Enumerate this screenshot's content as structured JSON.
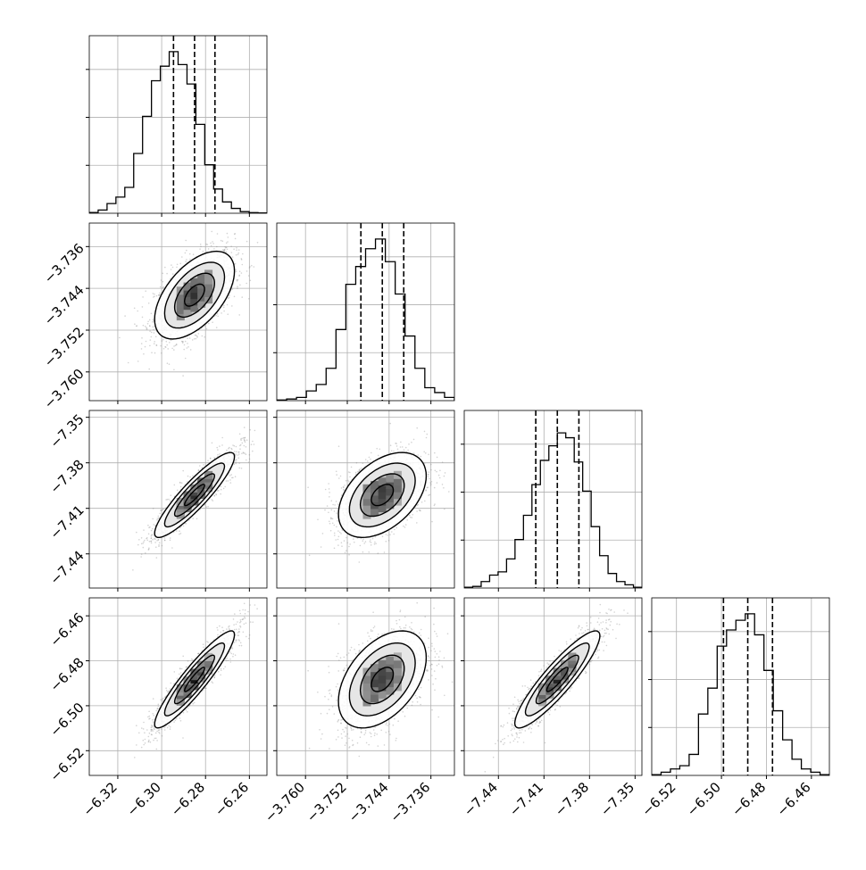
{
  "chart_data": {
    "type": "corner",
    "description_of_panels": "lower-triangle 2D histograms with contours and scatter; diagonal 1D histograms with 16/50/84 percent quantile dashed lines",
    "parameters": [
      {
        "ticks": [
          "−6.32",
          "−6.30",
          "−6.28",
          "−6.26"
        ],
        "tick_values": [
          -6.32,
          -6.3,
          -6.28,
          -6.26
        ],
        "range": [
          -6.333,
          -6.252
        ],
        "quantiles": [
          -6.2946,
          -6.285,
          -6.2757
        ],
        "hist": [
          0.005,
          0.02,
          0.06,
          0.1,
          0.16,
          0.37,
          0.6,
          0.82,
          0.91,
          1.0,
          0.92,
          0.8,
          0.55,
          0.3,
          0.15,
          0.07,
          0.03,
          0.01,
          0.004,
          0.002
        ]
      },
      {
        "ticks": [
          "−3.760",
          "−3.752",
          "−3.744",
          "−3.736"
        ],
        "tick_values": [
          -3.76,
          -3.752,
          -3.744,
          -3.736
        ],
        "range": [
          -3.7655,
          -3.7315
        ],
        "quantiles": [
          -3.7494,
          -3.7453,
          -3.7412
        ],
        "hist": [
          0.004,
          0.01,
          0.02,
          0.06,
          0.1,
          0.2,
          0.44,
          0.72,
          0.83,
          0.94,
          1.0,
          0.86,
          0.66,
          0.4,
          0.2,
          0.08,
          0.05,
          0.02
        ]
      },
      {
        "ticks": [
          "−7.44",
          "−7.41",
          "−7.38",
          "−7.35"
        ],
        "tick_values": [
          -7.44,
          -7.41,
          -7.38,
          -7.35
        ],
        "range": [
          -7.4625,
          -7.3455
        ],
        "quantiles": [
          -7.4154,
          -7.4012,
          -7.387
        ],
        "hist": [
          0.005,
          0.01,
          0.04,
          0.08,
          0.1,
          0.18,
          0.3,
          0.45,
          0.64,
          0.79,
          0.88,
          0.96,
          0.93,
          0.78,
          0.6,
          0.38,
          0.2,
          0.09,
          0.04,
          0.02,
          0.005
        ]
      },
      {
        "ticks": [
          "−6.52",
          "−6.50",
          "−6.48",
          "−6.46"
        ],
        "tick_values": [
          -6.52,
          -6.5,
          -6.48,
          -6.46
        ],
        "range": [
          -6.531,
          -6.452
        ],
        "quantiles": [
          -6.4991,
          -6.4883,
          -6.4773
        ],
        "hist": [
          0.005,
          0.02,
          0.04,
          0.06,
          0.13,
          0.38,
          0.54,
          0.8,
          0.9,
          0.96,
          1.0,
          0.87,
          0.65,
          0.4,
          0.22,
          0.1,
          0.04,
          0.02,
          0.005
        ]
      }
    ],
    "pairs": [
      {
        "x": 0,
        "y": 1,
        "center": [
          -6.285,
          -3.7453
        ],
        "sd": [
          0.0091,
          0.0042
        ],
        "corr": 0.55
      },
      {
        "x": 0,
        "y": 2,
        "center": [
          -6.285,
          -7.4012
        ],
        "sd": [
          0.0091,
          0.014
        ],
        "corr": 0.9
      },
      {
        "x": 1,
        "y": 2,
        "center": [
          -3.7453,
          -7.4012
        ],
        "sd": [
          0.0042,
          0.014
        ],
        "corr": 0.45
      },
      {
        "x": 0,
        "y": 3,
        "center": [
          -6.285,
          -6.4883
        ],
        "sd": [
          0.0091,
          0.0108
        ],
        "corr": 0.92
      },
      {
        "x": 1,
        "y": 3,
        "center": [
          -3.7453,
          -6.4883
        ],
        "sd": [
          0.0042,
          0.0108
        ],
        "corr": 0.45
      },
      {
        "x": 2,
        "y": 3,
        "center": [
          -7.4012,
          -6.4883
        ],
        "sd": [
          0.014,
          0.0108
        ],
        "corr": 0.9
      }
    ],
    "contour_levels_sigma": [
      0.5,
      1.0,
      1.5,
      2.0
    ],
    "grid": true,
    "colors": {
      "line": "#000000",
      "grid": "#b0b0b0",
      "scatter": "#808080"
    }
  }
}
